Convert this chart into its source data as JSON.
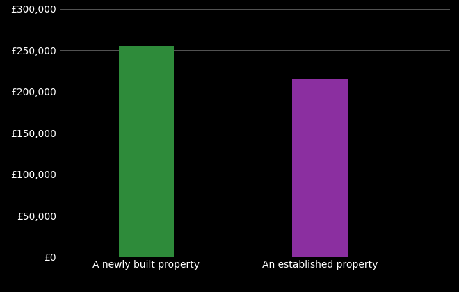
{
  "categories": [
    "A newly built property",
    "An established property"
  ],
  "values": [
    255000,
    215000
  ],
  "bar_colors": [
    "#2e8b3a",
    "#8b2fa0"
  ],
  "background_color": "#000000",
  "text_color": "#ffffff",
  "grid_color": "#555555",
  "ylim": [
    0,
    300000
  ],
  "yticks": [
    0,
    50000,
    100000,
    150000,
    200000,
    250000,
    300000
  ],
  "bar_width": 0.32,
  "x_positions": [
    1,
    2
  ],
  "xlim": [
    0.5,
    2.75
  ],
  "title": "",
  "xlabel": "",
  "ylabel": "",
  "fontsize_ticks": 10,
  "fontsize_xticks": 10
}
